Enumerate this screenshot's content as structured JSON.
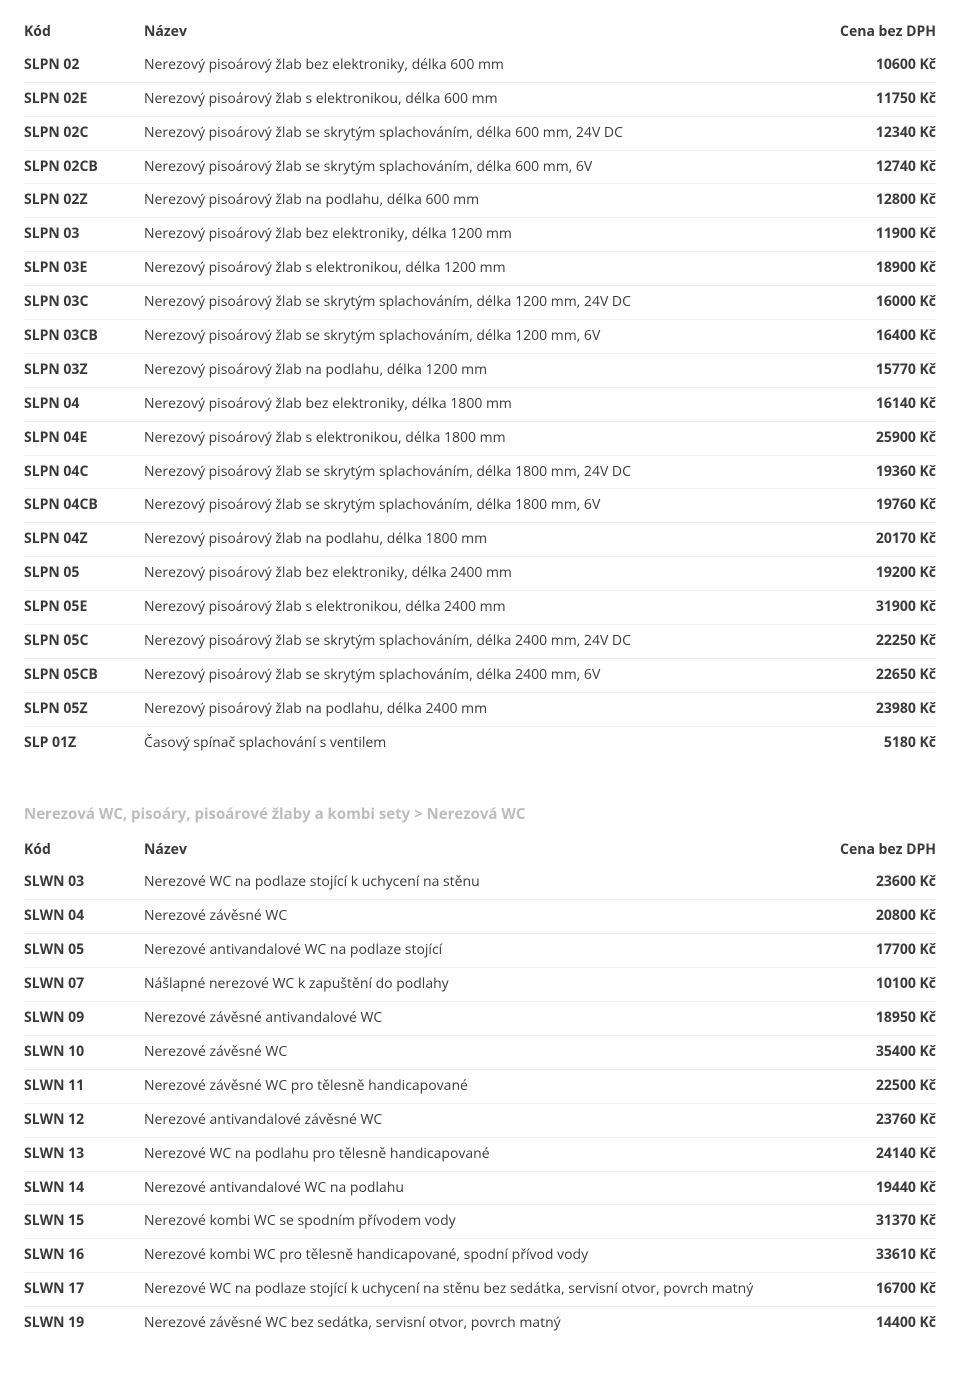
{
  "columns": {
    "code": "Kód",
    "name": "Název",
    "price": "Cena bez DPH"
  },
  "table1": {
    "rows": [
      {
        "code": "SLPN 02",
        "name": "Nerezový pisoárový žlab bez elektroniky, délka 600 mm",
        "price": "10600 Kč"
      },
      {
        "code": "SLPN 02E",
        "name": "Nerezový pisoárový žlab s elektronikou, délka 600 mm",
        "price": "11750 Kč"
      },
      {
        "code": "SLPN 02C",
        "name": "Nerezový pisoárový žlab se skrytým splachováním, délka 600 mm, 24V DC",
        "price": "12340 Kč"
      },
      {
        "code": "SLPN 02CB",
        "name": "Nerezový pisoárový žlab se skrytým splachováním, délka 600 mm, 6V",
        "price": "12740 Kč"
      },
      {
        "code": "SLPN 02Z",
        "name": "Nerezový pisoárový žlab na podlahu, délka 600 mm",
        "price": "12800 Kč"
      },
      {
        "code": "SLPN 03",
        "name": "Nerezový pisoárový žlab bez elektroniky, délka 1200 mm",
        "price": "11900 Kč"
      },
      {
        "code": "SLPN 03E",
        "name": "Nerezový pisoárový žlab s elektronikou, délka 1200 mm",
        "price": "18900 Kč"
      },
      {
        "code": "SLPN 03C",
        "name": "Nerezový pisoárový žlab se skrytým splachováním, délka 1200 mm, 24V DC",
        "price": "16000 Kč"
      },
      {
        "code": "SLPN 03CB",
        "name": "Nerezový pisoárový žlab se skrytým splachováním, délka 1200 mm, 6V",
        "price": "16400 Kč"
      },
      {
        "code": "SLPN 03Z",
        "name": "Nerezový pisoárový žlab na podlahu, délka 1200 mm",
        "price": "15770 Kč"
      },
      {
        "code": "SLPN 04",
        "name": "Nerezový pisoárový žlab bez elektroniky, délka 1800 mm",
        "price": "16140 Kč"
      },
      {
        "code": "SLPN 04E",
        "name": "Nerezový pisoárový žlab s elektronikou, délka 1800 mm",
        "price": "25900 Kč"
      },
      {
        "code": "SLPN 04C",
        "name": "Nerezový pisoárový žlab se skrytým splachováním, délka 1800 mm, 24V DC",
        "price": "19360 Kč"
      },
      {
        "code": "SLPN 04CB",
        "name": "Nerezový pisoárový žlab se skrytým splachováním, délka 1800 mm, 6V",
        "price": "19760 Kč"
      },
      {
        "code": "SLPN 04Z",
        "name": "Nerezový pisoárový žlab na podlahu, délka 1800 mm",
        "price": "20170 Kč"
      },
      {
        "code": "SLPN 05",
        "name": "Nerezový pisoárový žlab bez elektroniky, délka 2400 mm",
        "price": "19200 Kč"
      },
      {
        "code": "SLPN 05E",
        "name": "Nerezový pisoárový žlab s elektronikou, délka 2400 mm",
        "price": "31900 Kč"
      },
      {
        "code": "SLPN 05C",
        "name": "Nerezový pisoárový žlab se skrytým splachováním, délka 2400 mm, 24V DC",
        "price": "22250 Kč"
      },
      {
        "code": "SLPN 05CB",
        "name": "Nerezový pisoárový žlab se skrytým splachováním, délka 2400 mm, 6V",
        "price": "22650 Kč"
      },
      {
        "code": "SLPN 05Z",
        "name": "Nerezový pisoárový žlab na podlahu, délka 2400 mm",
        "price": "23980 Kč"
      },
      {
        "code": "SLP 01Z",
        "name": "Časový spínač splachování s ventilem",
        "price": "5180 Kč"
      }
    ]
  },
  "section2": {
    "title": "Nerezová WC, pisoáry, pisoárové žlaby a kombi sety > Nerezová WC"
  },
  "table2": {
    "rows": [
      {
        "code": "SLWN 03",
        "name": "Nerezové WC na podlaze stojící k uchycení na stěnu",
        "price": "23600 Kč"
      },
      {
        "code": "SLWN 04",
        "name": "Nerezové závěsné WC",
        "price": "20800 Kč"
      },
      {
        "code": "SLWN 05",
        "name": "Nerezové antivandalové WC na podlaze stojící",
        "price": "17700 Kč"
      },
      {
        "code": "SLWN 07",
        "name": "Nášlapné nerezové WC k zapuštění do podlahy",
        "price": "10100 Kč"
      },
      {
        "code": "SLWN 09",
        "name": "Nerezové závěsné antivandalové WC",
        "price": "18950 Kč"
      },
      {
        "code": "SLWN 10",
        "name": "Nerezové závěsné WC",
        "price": "35400 Kč"
      },
      {
        "code": "SLWN 11",
        "name": "Nerezové závěsné WC pro tělesně handicapované",
        "price": "22500 Kč"
      },
      {
        "code": "SLWN 12",
        "name": "Nerezové antivandalové závěsné WC",
        "price": "23760 Kč"
      },
      {
        "code": "SLWN 13",
        "name": "Nerezové WC na podlahu pro tělesně handicapované",
        "price": "24140 Kč"
      },
      {
        "code": "SLWN 14",
        "name": "Nerezové antivandalové WC na podlahu",
        "price": "19440 Kč"
      },
      {
        "code": "SLWN 15",
        "name": "Nerezové kombi WC se spodním přívodem vody",
        "price": "31370 Kč"
      },
      {
        "code": "SLWN 16",
        "name": "Nerezové kombi WC pro tělesně handicapované, spodní přívod vody",
        "price": "33610 Kč"
      },
      {
        "code": "SLWN 17",
        "name": "Nerezové WC na podlaze stojící k uchycení na stěnu bez sedátka, servisní otvor, povrch matný",
        "price": "16700 Kč"
      },
      {
        "code": "SLWN 19",
        "name": "Nerezové závěsné WC bez sedátka, servisní otvor, povrch matný",
        "price": "14400 Kč"
      }
    ]
  }
}
